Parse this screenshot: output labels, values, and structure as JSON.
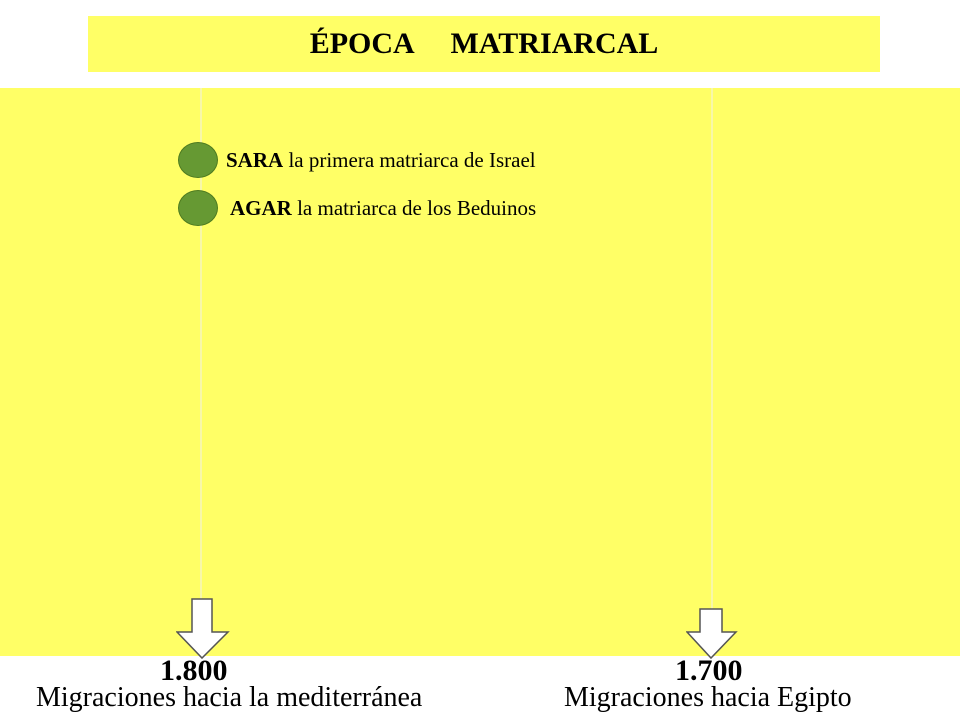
{
  "title": "ÉPOCA     MATRIARCAL",
  "legend": [
    {
      "name": "SARA",
      "desc": " la primera matriarca de Israel",
      "color": "#669933"
    },
    {
      "name": "AGAR",
      "desc": " la matriarca de los Beduinos",
      "color": "#669933"
    }
  ],
  "timeline": [
    {
      "year": "1.800",
      "caption": "Migraciones hacia la mediterránea"
    },
    {
      "year": "1.700",
      "caption": "Migraciones hacia Egipto"
    }
  ],
  "colors": {
    "background": "#ffff66",
    "marker": "#669933",
    "arrow_fill": "#ffffff"
  }
}
